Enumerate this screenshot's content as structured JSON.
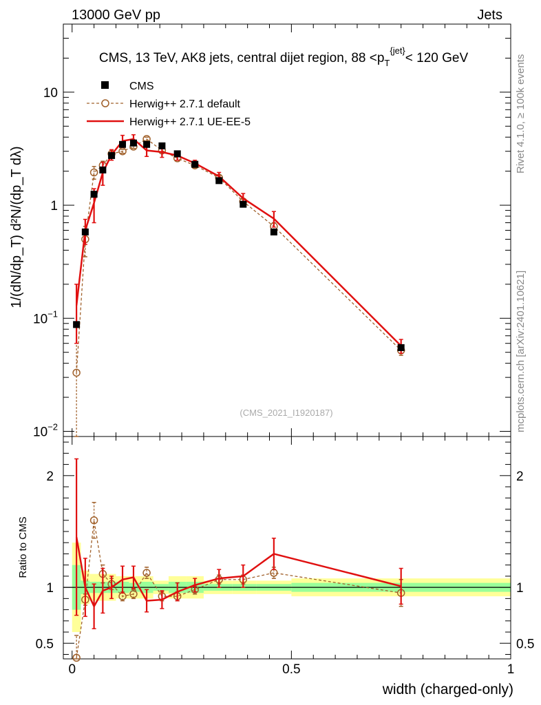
{
  "header": {
    "energy": "13000 GeV pp",
    "category": "Jets"
  },
  "side_labels": {
    "rivet": "Rivet 4.1.0, ≥ 100k events",
    "mcplots": "mcplots.cern.ch [arXiv:2401.10621]"
  },
  "chart_data": [
    {
      "type": "line",
      "panel": "main",
      "title": "CMS, 13 TeV, AK8 jets, central dijet region, 88 <p_T^{jet}< 120 GeV",
      "ylabel": "1/(dN/dp_T) d²N/(dp_T dλ)",
      "yscale": "log",
      "ylim": [
        0.009,
        40
      ],
      "xlim": [
        -0.02,
        1.0
      ],
      "y_ticks": [
        {
          "v": 0.01,
          "base": "10",
          "exp": "−2"
        },
        {
          "v": 0.1,
          "base": "10",
          "exp": "−1"
        },
        {
          "v": 1,
          "base": "1",
          "exp": ""
        },
        {
          "v": 10,
          "base": "10",
          "exp": ""
        }
      ],
      "watermark": "(CMS_2021_I1920187)",
      "legend": [
        "CMS",
        "Herwig++ 2.7.1 default",
        "Herwig++ 2.7.1 UE-EE-5"
      ],
      "series": [
        {
          "name": "CMS",
          "color": "#000000",
          "style": "square",
          "x": [
            0.01,
            0.03,
            0.05,
            0.07,
            0.09,
            0.115,
            0.14,
            0.17,
            0.205,
            0.24,
            0.28,
            0.335,
            0.39,
            0.46,
            0.75
          ],
          "y": [
            0.088,
            0.58,
            1.25,
            2.05,
            2.75,
            3.45,
            3.55,
            3.45,
            3.35,
            2.85,
            2.3,
            1.65,
            1.02,
            0.58,
            0.055
          ]
        },
        {
          "name": "Herwig++ 2.7.1 default",
          "color": "#a0602a",
          "style": "dashed-circle",
          "x": [
            0.01,
            0.03,
            0.05,
            0.07,
            0.09,
            0.115,
            0.14,
            0.17,
            0.205,
            0.24,
            0.28,
            0.335,
            0.39,
            0.46,
            0.75
          ],
          "y": [
            0.033,
            0.5,
            1.95,
            2.25,
            2.85,
            3.0,
            3.3,
            3.85,
            3.05,
            2.6,
            2.25,
            1.75,
            1.08,
            0.65,
            0.052
          ],
          "err": [
            0.05,
            0.15,
            0.25,
            0.2,
            0.15,
            0.12,
            0.12,
            0.15,
            0.12,
            0.1,
            0.1,
            0.08,
            0.05,
            0.05,
            0.005
          ]
        },
        {
          "name": "Herwig++ 2.7.1 UE-EE-5",
          "color": "#e01010",
          "style": "solid",
          "x": [
            0.01,
            0.03,
            0.05,
            0.07,
            0.09,
            0.115,
            0.14,
            0.17,
            0.205,
            0.24,
            0.28,
            0.335,
            0.39,
            0.46,
            0.75
          ],
          "y": [
            0.13,
            0.6,
            1.05,
            1.95,
            2.8,
            3.7,
            3.85,
            3.05,
            2.95,
            2.75,
            2.35,
            1.8,
            1.15,
            0.76,
            0.057
          ],
          "err": [
            0.07,
            0.15,
            0.35,
            0.45,
            0.3,
            0.45,
            0.35,
            0.35,
            0.3,
            0.25,
            0.15,
            0.15,
            0.12,
            0.12,
            0.008
          ]
        }
      ]
    },
    {
      "type": "line",
      "panel": "ratio",
      "ylabel": "Ratio to CMS",
      "xlabel": "width (charged-only)",
      "ylim": [
        0.36,
        2.35
      ],
      "xlim": [
        -0.02,
        1.0
      ],
      "x_ticks": [
        {
          "v": 0,
          "label": "0"
        },
        {
          "v": 0.5,
          "label": "0.5"
        },
        {
          "v": 1,
          "label": "1"
        }
      ],
      "y_ticks": [
        {
          "v": 0.5,
          "label": "0.5"
        },
        {
          "v": 1,
          "label": "1"
        },
        {
          "v": 2,
          "label": "2"
        }
      ],
      "bands": {
        "edges": [
          0,
          0.02,
          0.04,
          0.06,
          0.08,
          0.1,
          0.13,
          0.155,
          0.185,
          0.22,
          0.26,
          0.3,
          0.365,
          0.42,
          0.5,
          1.0
        ],
        "yellow": [
          0.4,
          0.15,
          0.12,
          0.12,
          0.12,
          0.1,
          0.1,
          0.1,
          0.06,
          0.1,
          0.1,
          0.06,
          0.06,
          0.06,
          0.08
        ],
        "green": [
          0.2,
          0.06,
          0.05,
          0.05,
          0.05,
          0.05,
          0.04,
          0.05,
          0.03,
          0.05,
          0.05,
          0.03,
          0.03,
          0.03,
          0.04
        ]
      },
      "series": [
        {
          "name": "Herwig++ 2.7.1 default",
          "color": "#a0602a",
          "style": "dashed-circle",
          "x": [
            0.01,
            0.03,
            0.05,
            0.07,
            0.09,
            0.115,
            0.14,
            0.17,
            0.205,
            0.24,
            0.28,
            0.335,
            0.39,
            0.46,
            0.75
          ],
          "y": [
            0.37,
            0.89,
            1.6,
            1.12,
            1.03,
            0.92,
            0.94,
            1.13,
            0.92,
            0.92,
            0.98,
            1.07,
            1.07,
            1.13,
            0.95
          ],
          "err": [
            0.2,
            0.05,
            0.16,
            0.08,
            0.05,
            0.04,
            0.04,
            0.05,
            0.04,
            0.04,
            0.04,
            0.04,
            0.04,
            0.05,
            0.12
          ]
        },
        {
          "name": "Herwig++ 2.7.1 UE-EE-5",
          "color": "#e01010",
          "style": "solid",
          "x": [
            0.01,
            0.03,
            0.05,
            0.07,
            0.09,
            0.115,
            0.14,
            0.17,
            0.205,
            0.24,
            0.28,
            0.335,
            0.39,
            0.46,
            0.75
          ],
          "y": [
            1.45,
            1.0,
            0.83,
            0.97,
            1.0,
            1.07,
            1.09,
            0.88,
            0.89,
            0.96,
            1.02,
            1.08,
            1.1,
            1.3,
            1.01
          ],
          "err": [
            0.7,
            0.26,
            0.2,
            0.2,
            0.1,
            0.12,
            0.1,
            0.1,
            0.08,
            0.08,
            0.06,
            0.08,
            0.1,
            0.14,
            0.16
          ]
        }
      ]
    }
  ]
}
